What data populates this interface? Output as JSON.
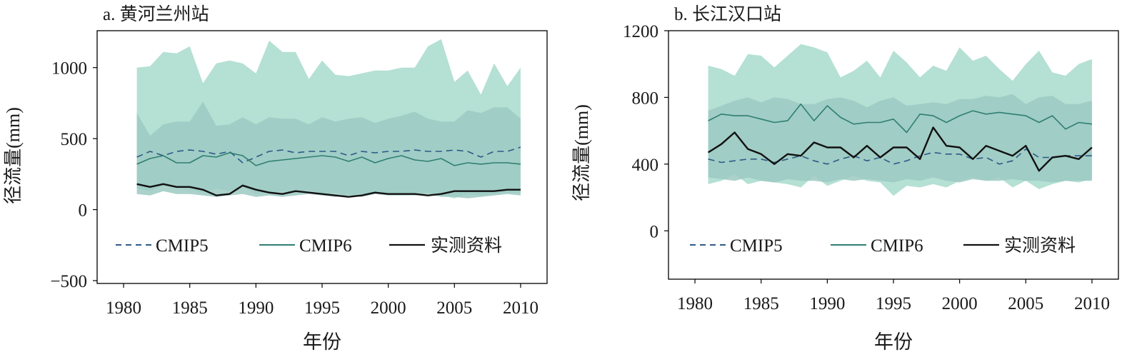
{
  "chart_data": [
    {
      "type": "line",
      "title": "a. 黄河兰州站",
      "xlabel": "年份",
      "ylabel": "径流量(mm)",
      "xlim": [
        1978,
        2012
      ],
      "ylim": [
        -520,
        1260
      ],
      "xticks": [
        1980,
        1985,
        1990,
        1995,
        2000,
        2005,
        2010
      ],
      "yticks": [
        -500,
        0,
        500,
        1000
      ],
      "legend": {
        "position": "bottom",
        "entries": [
          "CMIP5",
          "CMIP6",
          "实测资料"
        ]
      },
      "x": [
        1981,
        1982,
        1983,
        1984,
        1985,
        1986,
        1987,
        1988,
        1989,
        1990,
        1991,
        1992,
        1993,
        1994,
        1995,
        1996,
        1997,
        1998,
        1999,
        2000,
        2001,
        2002,
        2003,
        2004,
        2005,
        2006,
        2007,
        2008,
        2009,
        2010
      ],
      "bands": [
        {
          "series": "CMIP6",
          "color": "#b5e0d4",
          "upper": [
            1000,
            1010,
            1110,
            1100,
            1150,
            890,
            1030,
            1050,
            1030,
            960,
            1190,
            1110,
            1110,
            920,
            1050,
            950,
            940,
            960,
            980,
            980,
            1000,
            1000,
            1150,
            1200,
            900,
            980,
            810,
            1030,
            870,
            1000
          ],
          "lower": [
            150,
            130,
            170,
            150,
            140,
            120,
            150,
            130,
            160,
            110,
            120,
            130,
            120,
            140,
            110,
            120,
            100,
            110,
            120,
            120,
            110,
            110,
            120,
            100,
            80,
            110,
            100,
            110,
            120,
            120
          ]
        },
        {
          "series": "CMIP5",
          "color": "#9cc9c2",
          "upper": [
            680,
            520,
            600,
            620,
            620,
            760,
            590,
            600,
            650,
            600,
            650,
            640,
            640,
            600,
            650,
            620,
            640,
            650,
            610,
            640,
            660,
            690,
            640,
            620,
            620,
            700,
            680,
            720,
            720,
            640
          ],
          "lower": [
            110,
            100,
            130,
            110,
            110,
            100,
            90,
            100,
            110,
            90,
            100,
            90,
            100,
            110,
            100,
            90,
            100,
            90,
            110,
            100,
            100,
            100,
            110,
            90,
            90,
            80,
            90,
            100,
            110,
            100
          ]
        }
      ],
      "series": [
        {
          "name": "CMIP5",
          "style": "dashed",
          "color": "#2e5a87",
          "values": [
            370,
            410,
            380,
            410,
            420,
            410,
            390,
            410,
            330,
            370,
            410,
            420,
            400,
            410,
            410,
            410,
            380,
            410,
            400,
            410,
            410,
            420,
            410,
            410,
            420,
            410,
            370,
            410,
            410,
            440
          ]
        },
        {
          "name": "CMIP6",
          "style": "solid",
          "color": "#2f7f72",
          "values": [
            320,
            360,
            380,
            330,
            330,
            380,
            370,
            400,
            380,
            310,
            340,
            350,
            360,
            370,
            380,
            370,
            340,
            370,
            330,
            360,
            380,
            350,
            340,
            360,
            310,
            330,
            320,
            330,
            330,
            320
          ]
        },
        {
          "name": "实测资料",
          "style": "solid",
          "color": "#111111",
          "values": [
            180,
            160,
            180,
            160,
            160,
            140,
            100,
            110,
            170,
            140,
            120,
            110,
            130,
            120,
            110,
            100,
            90,
            100,
            120,
            110,
            110,
            110,
            100,
            110,
            130,
            130,
            130,
            130,
            140,
            140
          ]
        }
      ]
    },
    {
      "type": "line",
      "title": "b. 长江汉口站",
      "xlabel": "年份",
      "ylabel": "径流量(mm)",
      "xlim": [
        1978,
        2012
      ],
      "ylim": [
        -290,
        1200
      ],
      "xticks": [
        1980,
        1985,
        1990,
        1995,
        2000,
        2005,
        2010
      ],
      "yticks": [
        0,
        400,
        800,
        1200
      ],
      "legend": {
        "position": "bottom",
        "entries": [
          "CMIP5",
          "CMIP6",
          "实测资料"
        ]
      },
      "x": [
        1981,
        1982,
        1983,
        1984,
        1985,
        1986,
        1987,
        1988,
        1989,
        1990,
        1991,
        1992,
        1993,
        1994,
        1995,
        1996,
        1997,
        1998,
        1999,
        2000,
        2001,
        2002,
        2003,
        2004,
        2005,
        2006,
        2007,
        2008,
        2009,
        2010
      ],
      "bands": [
        {
          "series": "CMIP6",
          "color": "#b5e0d4",
          "upper": [
            990,
            970,
            930,
            1060,
            1050,
            980,
            1050,
            1120,
            1100,
            1070,
            920,
            960,
            1020,
            920,
            1080,
            1010,
            920,
            990,
            960,
            1100,
            1020,
            1050,
            970,
            900,
            1000,
            1080,
            950,
            930,
            1000,
            1030
          ],
          "lower": [
            280,
            300,
            340,
            280,
            300,
            290,
            280,
            260,
            330,
            270,
            300,
            330,
            300,
            290,
            210,
            270,
            260,
            280,
            260,
            300,
            320,
            300,
            320,
            260,
            300,
            250,
            280,
            300,
            290,
            310
          ]
        },
        {
          "series": "CMIP5",
          "color": "#9cc9c2",
          "upper": [
            720,
            750,
            780,
            800,
            770,
            800,
            790,
            760,
            760,
            790,
            800,
            780,
            740,
            780,
            800,
            750,
            760,
            770,
            760,
            790,
            790,
            810,
            800,
            820,
            760,
            800,
            810,
            760,
            760,
            780
          ],
          "lower": [
            320,
            310,
            300,
            320,
            300,
            290,
            310,
            300,
            300,
            290,
            310,
            300,
            310,
            300,
            290,
            310,
            300,
            320,
            300,
            290,
            310,
            300,
            300,
            310,
            300,
            300,
            290,
            300,
            300,
            300
          ]
        }
      ],
      "series": [
        {
          "name": "CMIP5",
          "style": "dashed",
          "color": "#2e5a87",
          "values": [
            430,
            410,
            420,
            430,
            430,
            410,
            430,
            450,
            420,
            400,
            430,
            450,
            420,
            440,
            400,
            420,
            450,
            470,
            460,
            460,
            430,
            440,
            400,
            420,
            490,
            440,
            440,
            450,
            450,
            450
          ]
        },
        {
          "name": "CMIP6",
          "style": "solid",
          "color": "#2f7f72",
          "values": [
            660,
            700,
            690,
            690,
            670,
            650,
            660,
            760,
            660,
            750,
            680,
            640,
            650,
            650,
            670,
            590,
            700,
            690,
            650,
            690,
            720,
            700,
            710,
            700,
            690,
            650,
            690,
            610,
            650,
            640
          ]
        },
        {
          "name": "实测资料",
          "style": "solid",
          "color": "#111111",
          "values": [
            470,
            520,
            590,
            490,
            460,
            400,
            460,
            450,
            530,
            500,
            500,
            440,
            510,
            440,
            500,
            500,
            430,
            620,
            510,
            500,
            430,
            510,
            480,
            450,
            510,
            360,
            440,
            450,
            430,
            500
          ]
        }
      ]
    }
  ]
}
